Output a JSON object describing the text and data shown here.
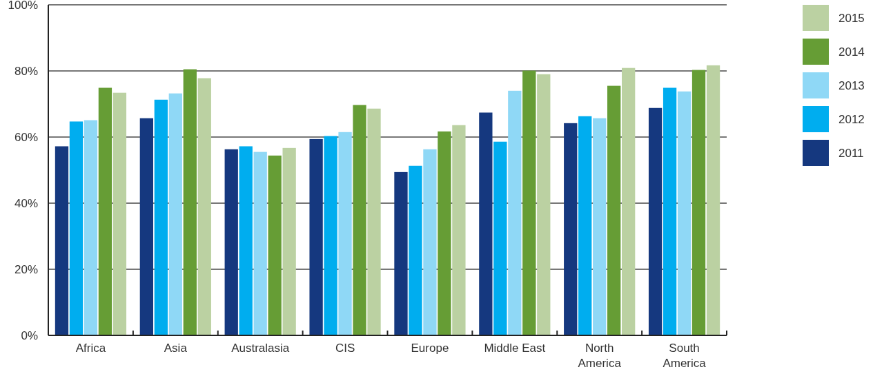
{
  "chart_data": {
    "type": "bar",
    "categories": [
      "Africa",
      "Asia",
      "Australasia",
      "CIS",
      "Europe",
      "Middle East",
      "North America",
      "South America"
    ],
    "series": [
      {
        "name": "2011",
        "color": "#15387f",
        "values": [
          57.2,
          65.7,
          56.3,
          59.4,
          49.4,
          67.4,
          64.2,
          68.8
        ]
      },
      {
        "name": "2012",
        "color": "#00adef",
        "values": [
          64.7,
          71.3,
          57.2,
          60.3,
          51.3,
          58.6,
          66.3,
          74.9
        ]
      },
      {
        "name": "2013",
        "color": "#8fd8f6",
        "values": [
          65.1,
          73.2,
          55.5,
          61.5,
          56.3,
          74.0,
          65.7,
          73.8
        ]
      },
      {
        "name": "2014",
        "color": "#669d35",
        "values": [
          74.9,
          80.5,
          54.4,
          69.7,
          61.7,
          80.1,
          75.5,
          80.3
        ]
      },
      {
        "name": "2015",
        "color": "#bbd1a2",
        "values": [
          73.4,
          77.8,
          56.7,
          68.6,
          63.6,
          79.0,
          80.9,
          81.7
        ]
      }
    ],
    "ylim": [
      0,
      100
    ],
    "yticks": [
      {
        "value": 0,
        "label": "0%"
      },
      {
        "value": 20,
        "label": "20%"
      },
      {
        "value": 40,
        "label": "40%"
      },
      {
        "value": 60,
        "label": "60%"
      },
      {
        "value": 80,
        "label": "80%"
      },
      {
        "value": 100,
        "label": "100%"
      }
    ],
    "grid": "y",
    "legend": "right"
  }
}
